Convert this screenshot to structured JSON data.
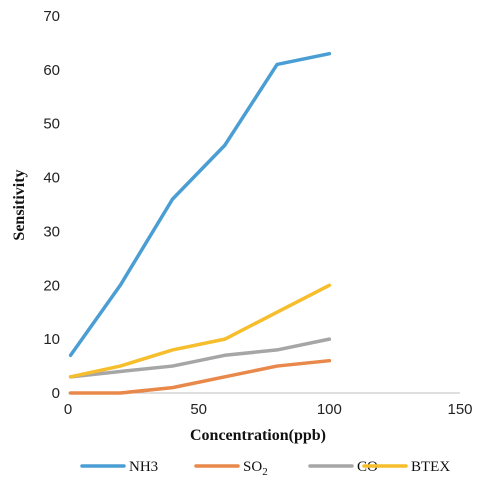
{
  "chart_data": {
    "type": "line",
    "title": "",
    "xlabel": "Concentration(ppb)",
    "ylabel": "Sensitivity",
    "xlim": [
      0,
      150
    ],
    "ylim": [
      0,
      70
    ],
    "x_ticks": [
      0,
      50,
      100,
      150
    ],
    "y_ticks": [
      0,
      10,
      20,
      30,
      40,
      50,
      60,
      70
    ],
    "grid": false,
    "legend_position": "bottom",
    "x": [
      1,
      20,
      40,
      60,
      80,
      100
    ],
    "series": [
      {
        "name": "NH3",
        "name_sub": "",
        "color": "#4a9ed3",
        "values": [
          7,
          20,
          36,
          46,
          61,
          63
        ]
      },
      {
        "name": "SO",
        "name_sub": "2",
        "color": "#e8884a",
        "values": [
          0,
          0,
          1,
          3,
          5,
          6
        ]
      },
      {
        "name": "CO",
        "name_sub": "",
        "color": "#a6a6a6",
        "values": [
          3,
          4,
          5,
          7,
          8,
          10
        ]
      },
      {
        "name": "BTEX",
        "name_sub": "",
        "color": "#f6be2c",
        "values": [
          3,
          5,
          8,
          10,
          15,
          20
        ]
      }
    ]
  }
}
